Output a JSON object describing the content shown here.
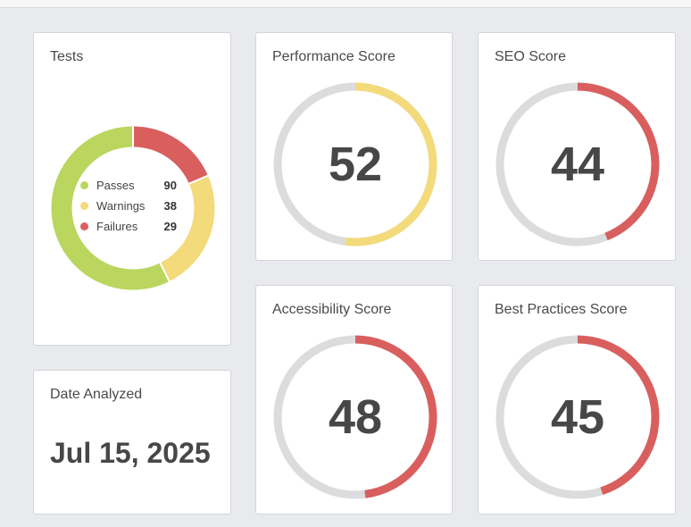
{
  "tests": {
    "title": "Tests",
    "items": [
      {
        "label": "Passes",
        "count": 90,
        "color": "#bad65e"
      },
      {
        "label": "Warnings",
        "count": 38,
        "color": "#f3da7b"
      },
      {
        "label": "Failures",
        "count": 29,
        "color": "#d95f5f"
      }
    ]
  },
  "date": {
    "title": "Date Analyzed",
    "value": "Jul 15, 2025"
  },
  "scores": {
    "performance": {
      "title": "Performance Score",
      "value": "52",
      "percent": 52,
      "color": "#f3da7b"
    },
    "seo": {
      "title": "SEO Score",
      "value": "44",
      "percent": 44,
      "color": "#d95f5f"
    },
    "accessibility": {
      "title": "Accessibility Score",
      "value": "48",
      "percent": 48,
      "color": "#d95f5f"
    },
    "best_practices": {
      "title": "Best Practices Score",
      "value": "45",
      "percent": 45,
      "color": "#d95f5f"
    }
  },
  "colors": {
    "track": "#dcdcdc"
  }
}
